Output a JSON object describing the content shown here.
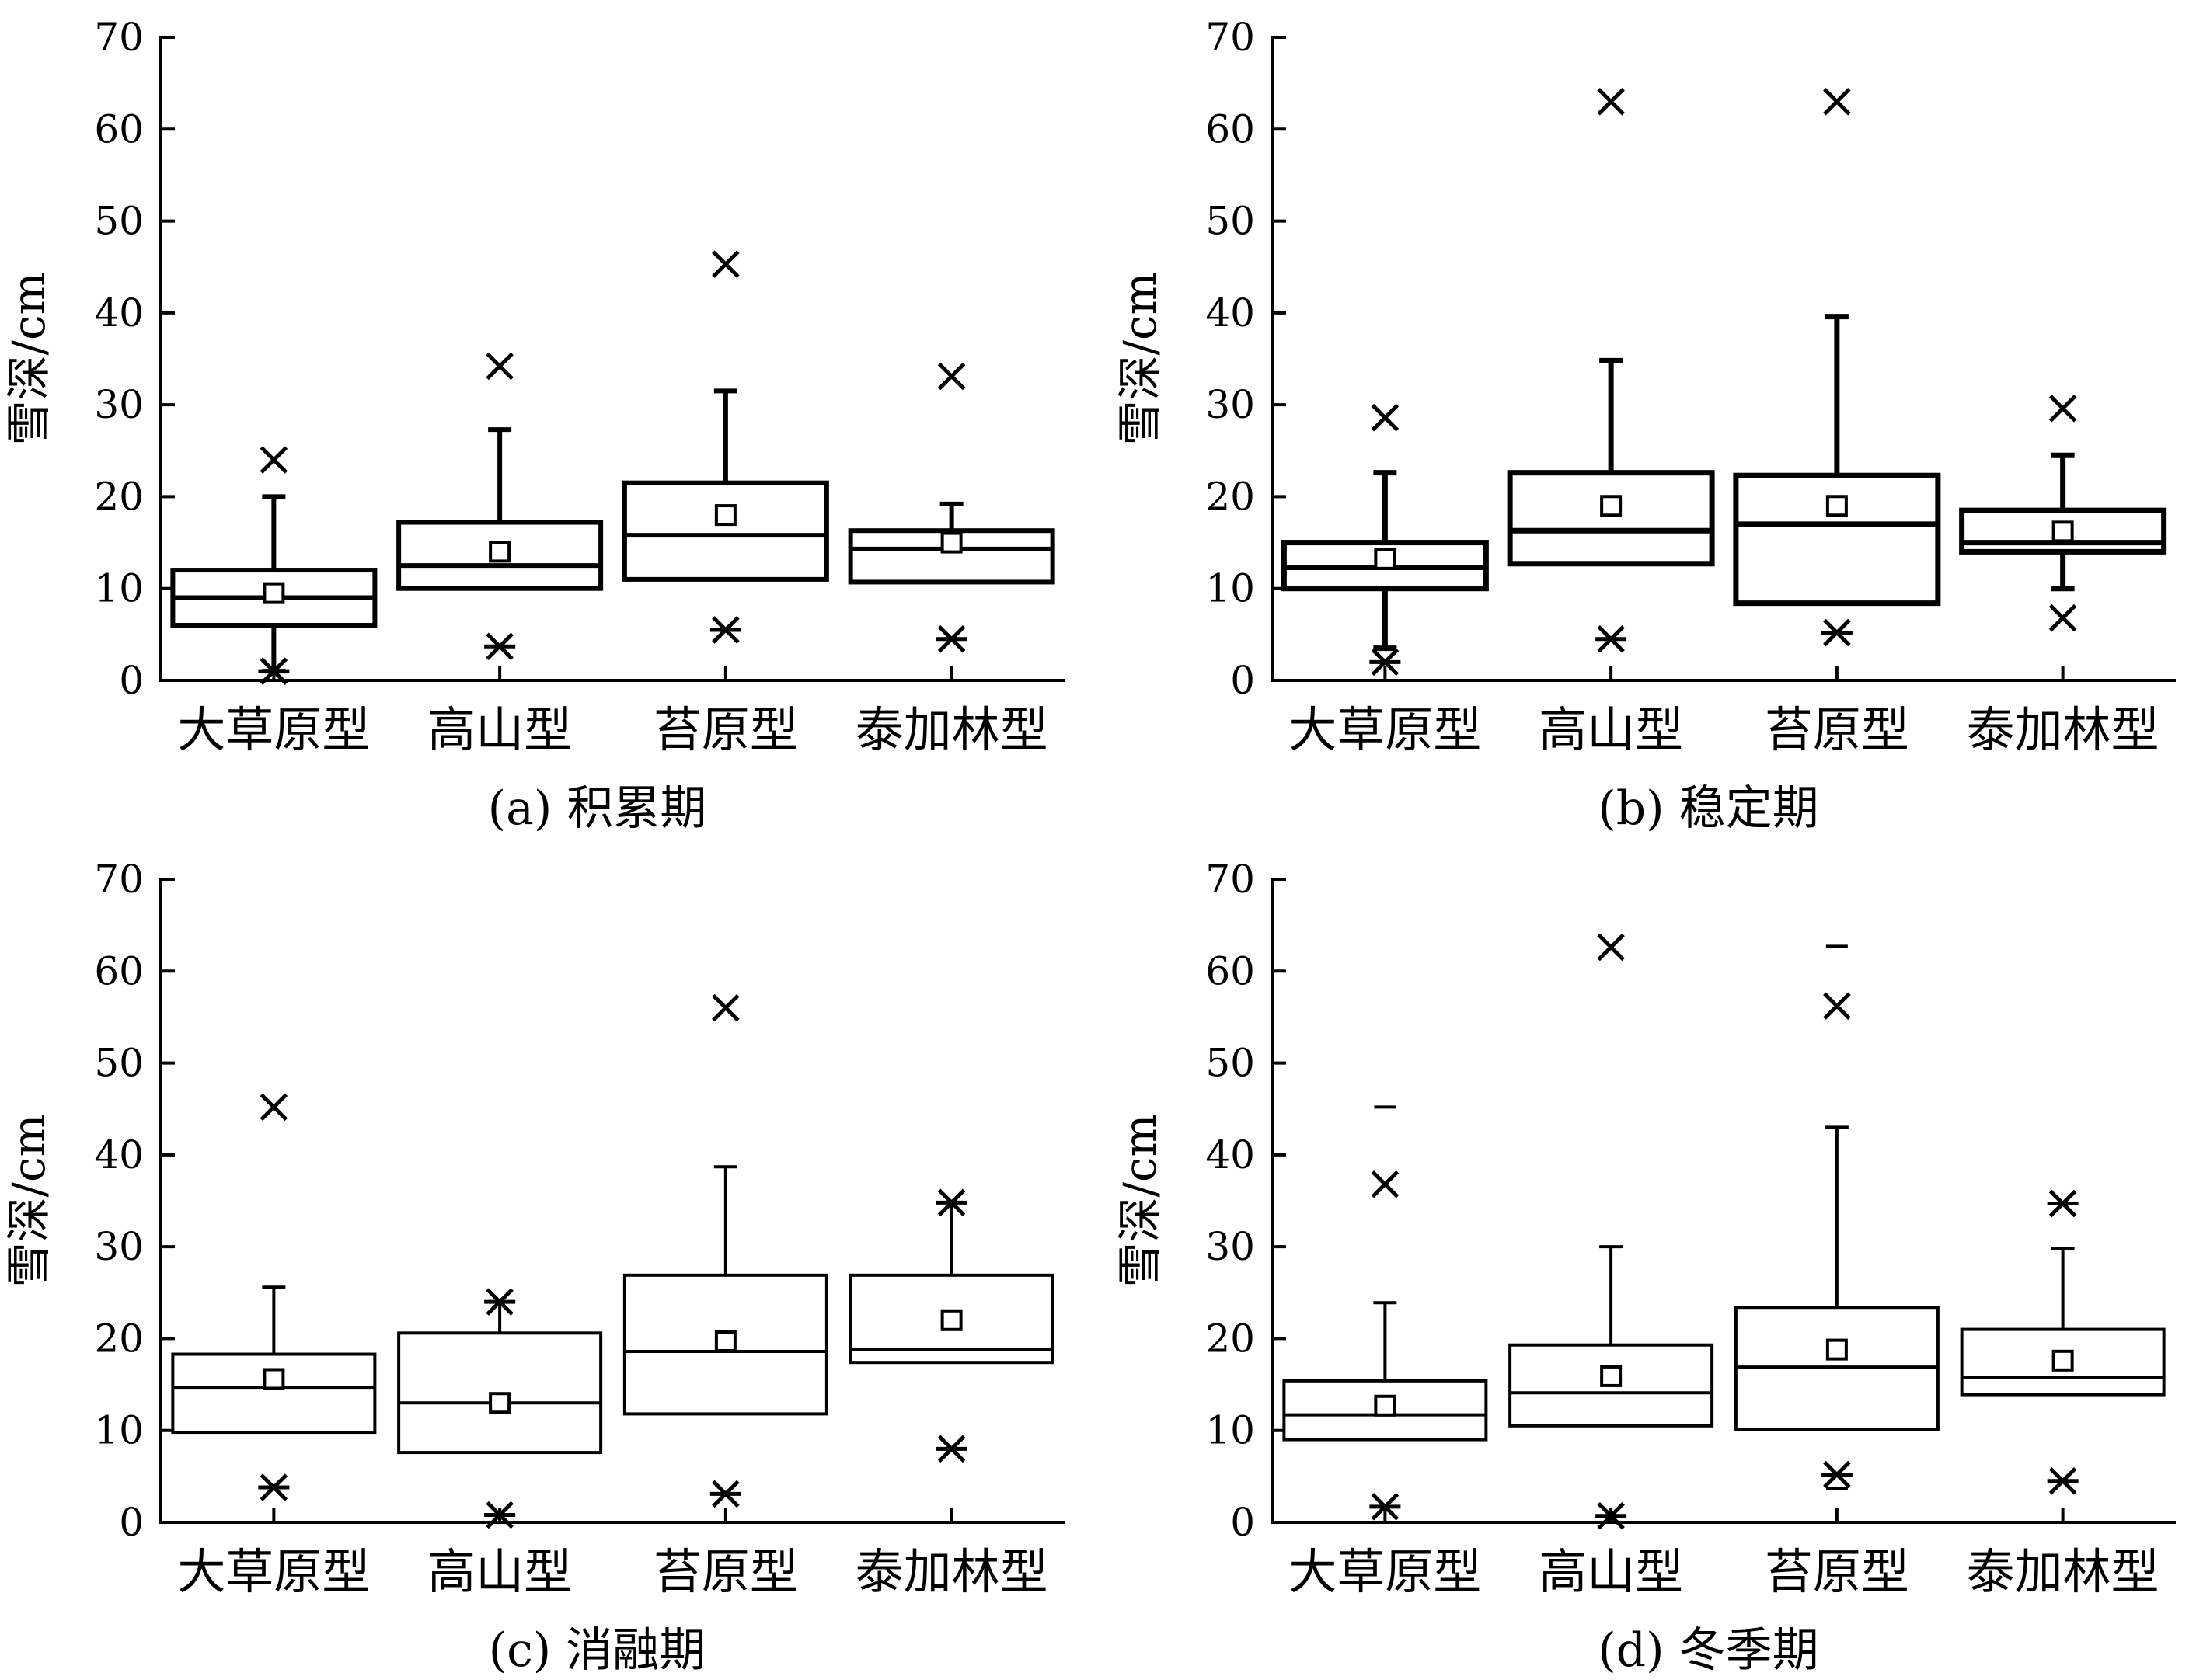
{
  "chart_data": [
    {
      "type": "box",
      "caption": "(a) 积累期",
      "ylabel": "雪深/cm",
      "ylim": [
        0,
        70
      ],
      "yticks": [
        0,
        10,
        20,
        30,
        40,
        50,
        60,
        70
      ],
      "categories": [
        "大草原型",
        "高山型",
        "苔原型",
        "泰加林型"
      ],
      "boxes": [
        {
          "min": 1,
          "q1": 6,
          "median": 9,
          "q3": 12,
          "max": 20,
          "mean": 9.5,
          "outliers_x": [
            24
          ],
          "outliers_star": [
            1
          ],
          "outliers_dash": []
        },
        {
          "min": 10,
          "q1": 10,
          "median": 12.5,
          "q3": 17.2,
          "max": 27.3,
          "mean": 14,
          "outliers_x": [
            34.2
          ],
          "outliers_star": [
            3.7
          ],
          "outliers_dash": []
        },
        {
          "min": 11,
          "q1": 11,
          "median": 15.8,
          "q3": 21.5,
          "max": 31.5,
          "mean": 18,
          "outliers_x": [
            45.3
          ],
          "outliers_star": [
            5.5
          ],
          "outliers_dash": []
        },
        {
          "min": 10.7,
          "q1": 10.7,
          "median": 14.3,
          "q3": 16.3,
          "max": 19.2,
          "mean": 15,
          "outliers_x": [
            33.1
          ],
          "outliers_star": [
            4.5
          ],
          "outliers_dash": []
        }
      ]
    },
    {
      "type": "box",
      "caption": "(b) 稳定期",
      "ylabel": "雪深/cm",
      "ylim": [
        0,
        70
      ],
      "yticks": [
        0,
        10,
        20,
        30,
        40,
        50,
        60,
        70
      ],
      "categories": [
        "大草原型",
        "高山型",
        "苔原型",
        "泰加林型"
      ],
      "boxes": [
        {
          "min": 3.5,
          "q1": 10,
          "median": 12.3,
          "q3": 15,
          "max": 22.6,
          "mean": 13.2,
          "outliers_x": [
            28.6
          ],
          "outliers_star": [
            2
          ],
          "outliers_dash": []
        },
        {
          "min": 12.7,
          "q1": 12.7,
          "median": 16.3,
          "q3": 22.6,
          "max": 34.8,
          "mean": 19,
          "outliers_x": [
            63
          ],
          "outliers_star": [
            4.5
          ],
          "outliers_dash": []
        },
        {
          "min": 8.4,
          "q1": 8.4,
          "median": 17,
          "q3": 22.3,
          "max": 39.6,
          "mean": 19,
          "outliers_x": [
            63
          ],
          "outliers_star": [
            5.2
          ],
          "outliers_dash": []
        },
        {
          "min": 10,
          "q1": 14,
          "median": 15,
          "q3": 18.5,
          "max": 24.5,
          "mean": 16.2,
          "outliers_x": [
            29.6,
            6.8
          ],
          "outliers_star": [],
          "outliers_dash": []
        }
      ]
    },
    {
      "type": "box",
      "caption": "(c) 消融期",
      "ylabel": "雪深/cm",
      "ylim": [
        0,
        70
      ],
      "yticks": [
        0,
        10,
        20,
        30,
        40,
        50,
        60,
        70
      ],
      "categories": [
        "大草原型",
        "高山型",
        "苔原型",
        "泰加林型"
      ],
      "boxes": [
        {
          "min": 9.8,
          "q1": 9.8,
          "median": 14.7,
          "q3": 18.3,
          "max": 25.6,
          "mean": 15.6,
          "outliers_x": [
            45.2
          ],
          "outliers_star": [
            3.8
          ],
          "outliers_dash": []
        },
        {
          "min": 7.6,
          "q1": 7.6,
          "median": 13,
          "q3": 20.6,
          "max": 24,
          "mean": 13,
          "outliers_x": [],
          "outliers_star": [
            24,
            0.8
          ],
          "outliers_dash": []
        },
        {
          "min": 11.8,
          "q1": 11.8,
          "median": 18.6,
          "q3": 26.9,
          "max": 38.7,
          "mean": 19.7,
          "outliers_x": [
            56
          ],
          "outliers_star": [
            3.1
          ],
          "outliers_dash": []
        },
        {
          "min": 17.4,
          "q1": 17.4,
          "median": 18.8,
          "q3": 26.9,
          "max": 34.8,
          "mean": 22,
          "outliers_x": [],
          "outliers_star": [
            34.8,
            8
          ],
          "outliers_dash": []
        }
      ]
    },
    {
      "type": "box",
      "caption": "(d) 冬季期",
      "ylabel": "雪深/cm",
      "ylim": [
        0,
        70
      ],
      "yticks": [
        0,
        10,
        20,
        30,
        40,
        50,
        60,
        70
      ],
      "categories": [
        "大草原型",
        "高山型",
        "苔原型",
        "泰加林型"
      ],
      "boxes": [
        {
          "min": 9,
          "q1": 9,
          "median": 11.7,
          "q3": 15.4,
          "max": 23.9,
          "mean": 12.7,
          "outliers_x": [
            36.8
          ],
          "outliers_star": [
            1.7
          ],
          "outliers_dash": [
            45.2
          ]
        },
        {
          "min": 10.5,
          "q1": 10.5,
          "median": 14.1,
          "q3": 19.3,
          "max": 30,
          "mean": 15.9,
          "outliers_x": [
            62.6
          ],
          "outliers_star": [
            0.7
          ],
          "outliers_dash": []
        },
        {
          "min": 10.1,
          "q1": 10.1,
          "median": 16.9,
          "q3": 23.4,
          "max": 43,
          "mean": 18.8,
          "outliers_x": [
            56.2
          ],
          "outliers_star": [
            5.2
          ],
          "outliers_dash": [
            62.7,
            3.7
          ]
        },
        {
          "min": 13.9,
          "q1": 13.9,
          "median": 15.8,
          "q3": 21,
          "max": 29.8,
          "mean": 17.6,
          "outliers_x": [],
          "outliers_star": [
            34.7,
            4.5
          ],
          "outliers_dash": []
        }
      ]
    }
  ]
}
